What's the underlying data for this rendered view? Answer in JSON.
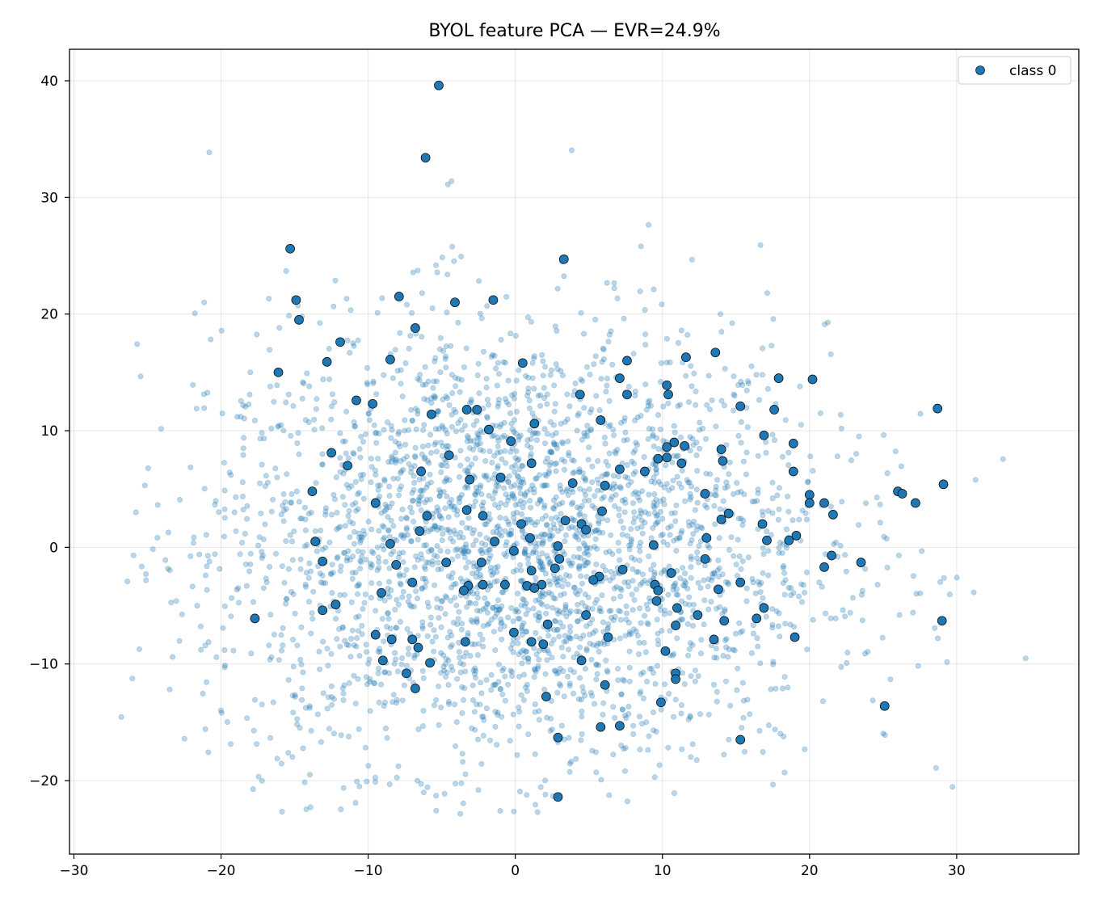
{
  "chart_data": {
    "type": "scatter",
    "title": "BYOL feature PCA — EVR=24.9%",
    "xlabel": "",
    "ylabel": "",
    "xlim": [
      -30.3,
      38.3
    ],
    "ylim": [
      -26.3,
      42.7
    ],
    "xticks": [
      -30,
      -20,
      -10,
      0,
      10,
      20,
      30
    ],
    "yticks": [
      -20,
      -10,
      0,
      10,
      20,
      30,
      40
    ],
    "xtick_labels": [
      "−30",
      "−20",
      "−10",
      "0",
      "10",
      "20",
      "30"
    ],
    "ytick_labels": [
      "−20",
      "−10",
      "0",
      "10",
      "20",
      "30",
      "40"
    ],
    "grid": true,
    "legend": {
      "position": "top-right",
      "entries": [
        "class 0"
      ]
    },
    "colors": {
      "series": "#1f77b4",
      "edge": "#000000"
    },
    "background_cloud": {
      "description_note": "",
      "count": 3000,
      "center": [
        0,
        0
      ],
      "spread": [
        10.5,
        9.5
      ],
      "x_range": [
        -27,
        36
      ],
      "y_range": [
        -23,
        35
      ]
    },
    "series": [
      {
        "name": "class 0",
        "points": [
          [
            -5.2,
            39.6
          ],
          [
            -6.1,
            33.4
          ],
          [
            -15.3,
            25.6
          ],
          [
            3.3,
            24.7
          ],
          [
            -14.9,
            21.2
          ],
          [
            -7.9,
            21.5
          ],
          [
            -4.1,
            21.0
          ],
          [
            -1.5,
            21.2
          ],
          [
            -14.7,
            19.5
          ],
          [
            -6.8,
            18.8
          ],
          [
            -11.9,
            17.6
          ],
          [
            11.6,
            16.3
          ],
          [
            13.6,
            16.7
          ],
          [
            -8.5,
            16.1
          ],
          [
            0.5,
            15.8
          ],
          [
            7.6,
            16.0
          ],
          [
            -16.1,
            15.0
          ],
          [
            -12.8,
            15.9
          ],
          [
            7.1,
            14.5
          ],
          [
            17.9,
            14.5
          ],
          [
            20.2,
            14.4
          ],
          [
            4.4,
            13.1
          ],
          [
            7.6,
            13.1
          ],
          [
            10.3,
            13.9
          ],
          [
            10.4,
            13.1
          ],
          [
            -10.8,
            12.6
          ],
          [
            -9.7,
            12.3
          ],
          [
            15.3,
            12.1
          ],
          [
            17.6,
            11.8
          ],
          [
            28.7,
            11.9
          ],
          [
            -5.7,
            11.4
          ],
          [
            -3.3,
            11.8
          ],
          [
            -2.6,
            11.8
          ],
          [
            5.8,
            10.9
          ],
          [
            -1.8,
            10.1
          ],
          [
            1.3,
            10.6
          ],
          [
            -0.3,
            9.1
          ],
          [
            10.8,
            9.0
          ],
          [
            16.9,
            9.6
          ],
          [
            18.9,
            8.9
          ],
          [
            -12.5,
            8.1
          ],
          [
            -4.5,
            7.9
          ],
          [
            1.1,
            7.2
          ],
          [
            10.3,
            8.6
          ],
          [
            11.5,
            8.7
          ],
          [
            9.7,
            7.6
          ],
          [
            10.3,
            7.7
          ],
          [
            11.3,
            7.2
          ],
          [
            14.0,
            8.4
          ],
          [
            14.1,
            7.4
          ],
          [
            -11.4,
            7.0
          ],
          [
            -6.4,
            6.5
          ],
          [
            7.1,
            6.7
          ],
          [
            8.8,
            6.5
          ],
          [
            18.9,
            6.5
          ],
          [
            -1.0,
            6.0
          ],
          [
            -3.1,
            5.8
          ],
          [
            3.9,
            5.5
          ],
          [
            6.1,
            5.3
          ],
          [
            20.0,
            4.5
          ],
          [
            12.9,
            4.6
          ],
          [
            -13.8,
            4.8
          ],
          [
            26.0,
            4.8
          ],
          [
            26.3,
            4.6
          ],
          [
            29.1,
            5.4
          ],
          [
            20.0,
            3.8
          ],
          [
            21.0,
            3.8
          ],
          [
            27.2,
            3.8
          ],
          [
            -9.5,
            3.8
          ],
          [
            -3.3,
            3.2
          ],
          [
            5.9,
            3.1
          ],
          [
            14.5,
            2.9
          ],
          [
            21.6,
            2.8
          ],
          [
            -2.2,
            2.7
          ],
          [
            -6.0,
            2.7
          ],
          [
            3.4,
            2.3
          ],
          [
            14.0,
            2.4
          ],
          [
            16.8,
            2.0
          ],
          [
            0.4,
            2.0
          ],
          [
            4.5,
            2.0
          ],
          [
            4.8,
            1.5
          ],
          [
            -6.5,
            1.4
          ],
          [
            19.1,
            1.0
          ],
          [
            1.0,
            0.8
          ],
          [
            13.0,
            0.8
          ],
          [
            17.1,
            0.6
          ],
          [
            18.6,
            0.6
          ],
          [
            -13.6,
            0.5
          ],
          [
            -1.4,
            0.5
          ],
          [
            -8.5,
            0.3
          ],
          [
            9.4,
            0.2
          ],
          [
            2.9,
            0.1
          ],
          [
            -0.1,
            -0.3
          ],
          [
            21.5,
            -0.7
          ],
          [
            3.0,
            -1.0
          ],
          [
            12.9,
            -1.0
          ],
          [
            -13.1,
            -1.2
          ],
          [
            -4.7,
            -1.3
          ],
          [
            -2.3,
            -1.3
          ],
          [
            23.5,
            -1.3
          ],
          [
            -8.1,
            -1.5
          ],
          [
            2.7,
            -1.8
          ],
          [
            21.0,
            -1.7
          ],
          [
            7.3,
            -1.9
          ],
          [
            1.1,
            -2.0
          ],
          [
            10.6,
            -2.2
          ],
          [
            5.7,
            -2.5
          ],
          [
            5.3,
            -2.8
          ],
          [
            -7.0,
            -3.0
          ],
          [
            15.3,
            -3.0
          ],
          [
            -3.2,
            -3.3
          ],
          [
            -2.2,
            -3.2
          ],
          [
            -0.7,
            -3.2
          ],
          [
            0.8,
            -3.3
          ],
          [
            1.8,
            -3.2
          ],
          [
            9.5,
            -3.2
          ],
          [
            1.3,
            -3.5
          ],
          [
            9.7,
            -3.7
          ],
          [
            -3.5,
            -3.7
          ],
          [
            13.8,
            -3.6
          ],
          [
            -9.1,
            -3.9
          ],
          [
            9.6,
            -4.6
          ],
          [
            -12.2,
            -4.9
          ],
          [
            11.0,
            -5.2
          ],
          [
            16.9,
            -5.2
          ],
          [
            -13.1,
            -5.4
          ],
          [
            4.8,
            -5.8
          ],
          [
            12.4,
            -5.8
          ],
          [
            -17.7,
            -6.1
          ],
          [
            16.4,
            -6.1
          ],
          [
            29.0,
            -6.3
          ],
          [
            14.2,
            -6.3
          ],
          [
            2.2,
            -6.6
          ],
          [
            10.9,
            -6.7
          ],
          [
            -0.1,
            -7.3
          ],
          [
            -9.5,
            -7.5
          ],
          [
            -8.4,
            -7.9
          ],
          [
            -7.0,
            -7.9
          ],
          [
            6.3,
            -7.7
          ],
          [
            19.0,
            -7.7
          ],
          [
            13.5,
            -7.9
          ],
          [
            -3.4,
            -8.1
          ],
          [
            1.1,
            -8.1
          ],
          [
            1.9,
            -8.3
          ],
          [
            -6.6,
            -8.6
          ],
          [
            10.2,
            -8.9
          ],
          [
            -9.0,
            -9.7
          ],
          [
            4.5,
            -9.7
          ],
          [
            -5.8,
            -9.9
          ],
          [
            -7.4,
            -10.8
          ],
          [
            10.9,
            -10.8
          ],
          [
            10.9,
            -11.3
          ],
          [
            6.1,
            -11.8
          ],
          [
            -6.8,
            -12.1
          ],
          [
            2.1,
            -12.8
          ],
          [
            9.9,
            -13.3
          ],
          [
            25.1,
            -13.6
          ],
          [
            5.8,
            -15.4
          ],
          [
            7.1,
            -15.3
          ],
          [
            2.9,
            -16.3
          ],
          [
            15.3,
            -16.5
          ],
          [
            2.9,
            -21.4
          ]
        ]
      }
    ]
  }
}
